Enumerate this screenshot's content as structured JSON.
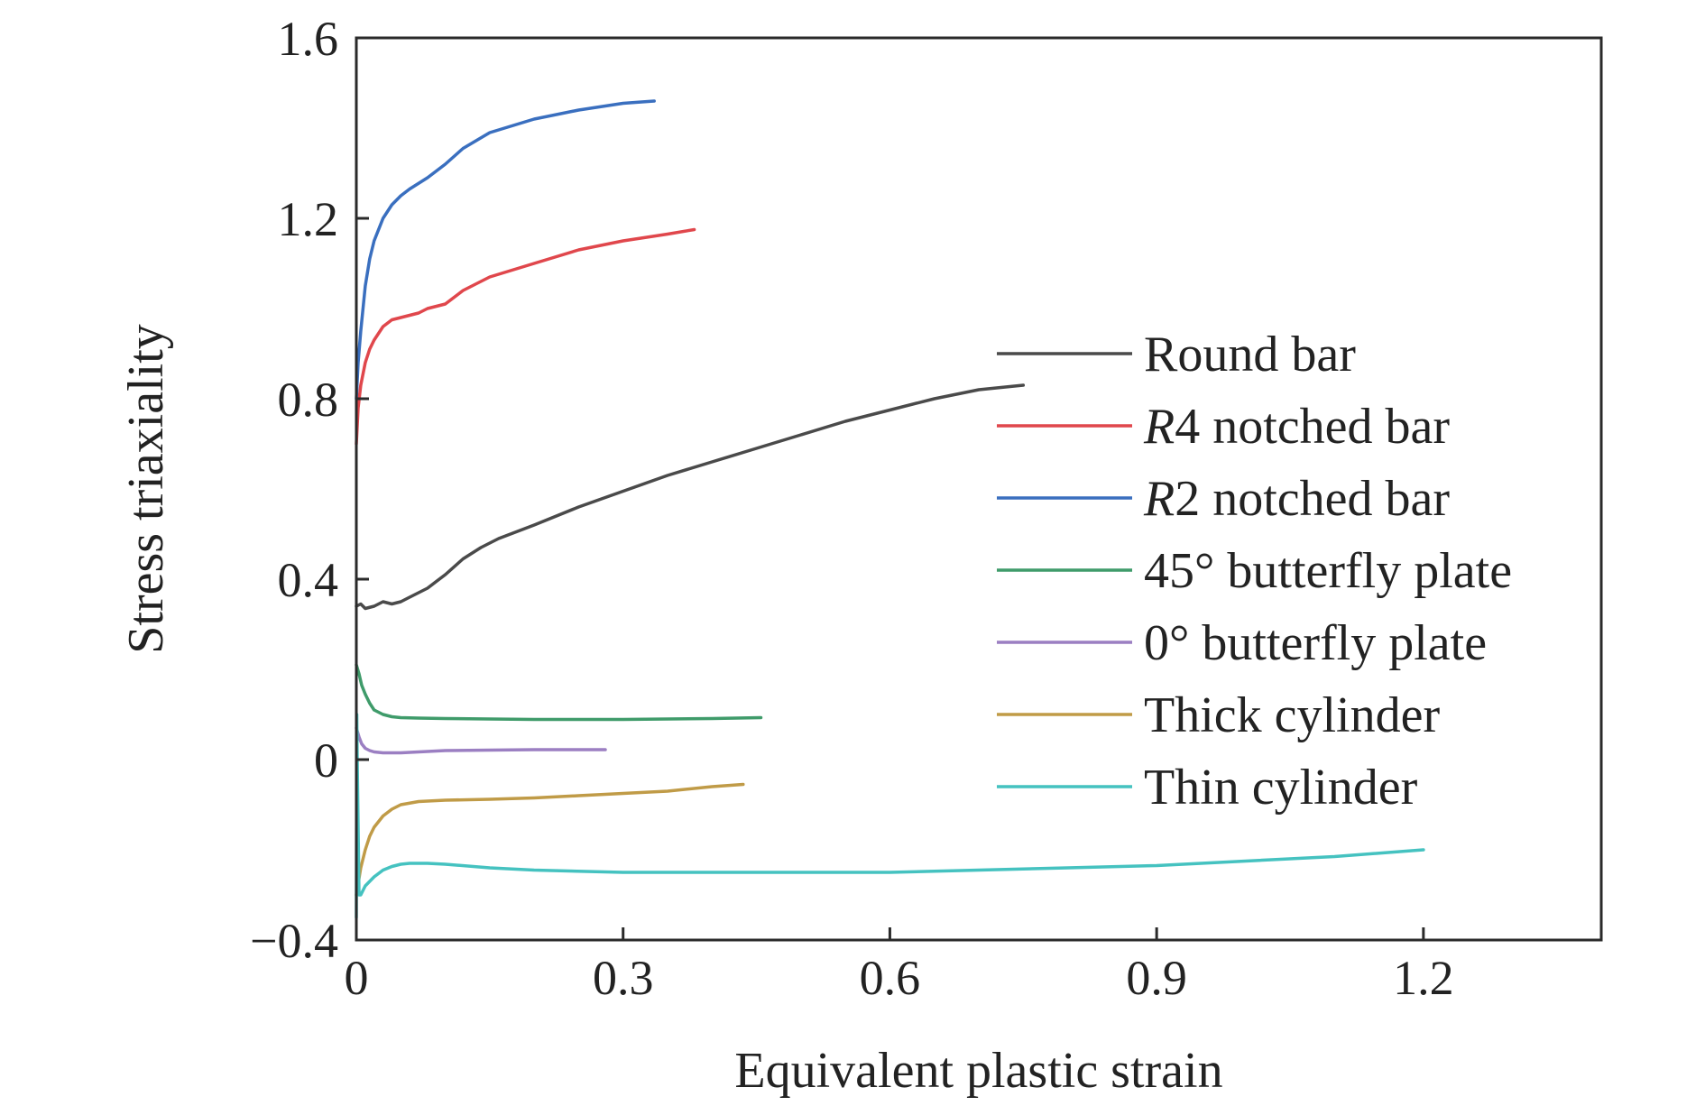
{
  "chart_data": {
    "type": "line",
    "xlabel": "Equivalent plastic strain",
    "ylabel": "Stress triaxiality",
    "xlim": [
      0,
      1.4
    ],
    "ylim": [
      -0.4,
      1.6
    ],
    "xticks": [
      0,
      0.3,
      0.6,
      0.9,
      1.2
    ],
    "xtick_labels": [
      "0",
      "0.3",
      "0.6",
      "0.9",
      "1.2"
    ],
    "yticks": [
      -0.4,
      0,
      0.4,
      0.8,
      1.2,
      1.6
    ],
    "ytick_labels": [
      "−0.4",
      "0",
      "0.4",
      "0.8",
      "1.2",
      "1.6"
    ],
    "grid": false,
    "legend_position": "right",
    "series": [
      {
        "name": "Round bar",
        "name_prefix": "",
        "name_rest": "Round bar",
        "color": "#4a4a4a",
        "x": [
          0.0,
          0.005,
          0.01,
          0.02,
          0.03,
          0.04,
          0.05,
          0.06,
          0.07,
          0.08,
          0.09,
          0.1,
          0.12,
          0.14,
          0.16,
          0.18,
          0.2,
          0.25,
          0.3,
          0.35,
          0.4,
          0.45,
          0.5,
          0.55,
          0.6,
          0.65,
          0.7,
          0.75
        ],
        "y": [
          0.34,
          0.345,
          0.335,
          0.34,
          0.35,
          0.345,
          0.35,
          0.36,
          0.37,
          0.38,
          0.395,
          0.41,
          0.445,
          0.47,
          0.49,
          0.505,
          0.52,
          0.56,
          0.595,
          0.63,
          0.66,
          0.69,
          0.72,
          0.75,
          0.775,
          0.8,
          0.82,
          0.83
        ]
      },
      {
        "name": "R4 notched bar",
        "name_prefix": "R",
        "name_rest": "4 notched bar",
        "color": "#e0474c",
        "x": [
          0.0,
          0.002,
          0.005,
          0.01,
          0.015,
          0.02,
          0.03,
          0.04,
          0.05,
          0.06,
          0.07,
          0.08,
          0.1,
          0.12,
          0.15,
          0.2,
          0.25,
          0.3,
          0.35,
          0.38
        ],
        "y": [
          0.7,
          0.78,
          0.83,
          0.88,
          0.91,
          0.93,
          0.96,
          0.975,
          0.98,
          0.985,
          0.99,
          1.0,
          1.01,
          1.04,
          1.07,
          1.1,
          1.13,
          1.15,
          1.165,
          1.175
        ]
      },
      {
        "name": "R2 notched bar",
        "name_prefix": "R",
        "name_rest": "2 notched bar",
        "color": "#3a6fbf",
        "x": [
          0.0,
          0.002,
          0.005,
          0.01,
          0.015,
          0.02,
          0.03,
          0.04,
          0.05,
          0.06,
          0.08,
          0.1,
          0.12,
          0.15,
          0.2,
          0.25,
          0.3,
          0.335
        ],
        "y": [
          0.8,
          0.88,
          0.95,
          1.05,
          1.11,
          1.15,
          1.2,
          1.23,
          1.25,
          1.265,
          1.29,
          1.32,
          1.355,
          1.39,
          1.42,
          1.44,
          1.455,
          1.46
        ]
      },
      {
        "name": "45° butterfly plate",
        "name_prefix": "",
        "name_rest": "45° butterfly plate",
        "color": "#3f9b6a",
        "x": [
          0.0,
          0.003,
          0.006,
          0.01,
          0.015,
          0.02,
          0.03,
          0.04,
          0.05,
          0.07,
          0.1,
          0.15,
          0.2,
          0.25,
          0.3,
          0.35,
          0.4,
          0.455
        ],
        "y": [
          0.21,
          0.19,
          0.165,
          0.145,
          0.125,
          0.11,
          0.1,
          0.095,
          0.093,
          0.092,
          0.091,
          0.09,
          0.089,
          0.089,
          0.089,
          0.09,
          0.091,
          0.093
        ]
      },
      {
        "name": "0° butterfly plate",
        "name_prefix": "",
        "name_rest": "0° butterfly plate",
        "color": "#9b7fc2",
        "x": [
          0.0,
          0.003,
          0.006,
          0.01,
          0.015,
          0.02,
          0.03,
          0.05,
          0.08,
          0.1,
          0.15,
          0.2,
          0.25,
          0.28
        ],
        "y": [
          0.07,
          0.05,
          0.035,
          0.025,
          0.02,
          0.017,
          0.015,
          0.015,
          0.018,
          0.02,
          0.021,
          0.022,
          0.022,
          0.022
        ]
      },
      {
        "name": "Thick cylinder",
        "name_prefix": "",
        "name_rest": "Thick cylinder",
        "color": "#c09b47",
        "x": [
          0.0,
          0.005,
          0.01,
          0.015,
          0.02,
          0.03,
          0.04,
          0.05,
          0.07,
          0.1,
          0.15,
          0.2,
          0.25,
          0.3,
          0.35,
          0.4,
          0.435
        ],
        "y": [
          -0.3,
          -0.24,
          -0.2,
          -0.17,
          -0.15,
          -0.125,
          -0.11,
          -0.1,
          -0.093,
          -0.09,
          -0.088,
          -0.085,
          -0.08,
          -0.075,
          -0.07,
          -0.06,
          -0.055
        ]
      },
      {
        "name": "Thin cylinder",
        "name_prefix": "",
        "name_rest": "Thin cylinder",
        "color": "#45c2c0",
        "x": [
          0.0,
          0.0005,
          0.001,
          0.003,
          0.005,
          0.01,
          0.02,
          0.03,
          0.04,
          0.05,
          0.06,
          0.08,
          0.1,
          0.15,
          0.2,
          0.3,
          0.4,
          0.5,
          0.6,
          0.7,
          0.8,
          0.9,
          1.0,
          1.1,
          1.2
        ],
        "y": [
          -0.35,
          0.1,
          0.0,
          -0.3,
          -0.3,
          -0.28,
          -0.26,
          -0.245,
          -0.237,
          -0.232,
          -0.23,
          -0.23,
          -0.232,
          -0.24,
          -0.245,
          -0.25,
          -0.25,
          -0.25,
          -0.25,
          -0.245,
          -0.24,
          -0.235,
          -0.225,
          -0.215,
          -0.2
        ]
      }
    ]
  }
}
